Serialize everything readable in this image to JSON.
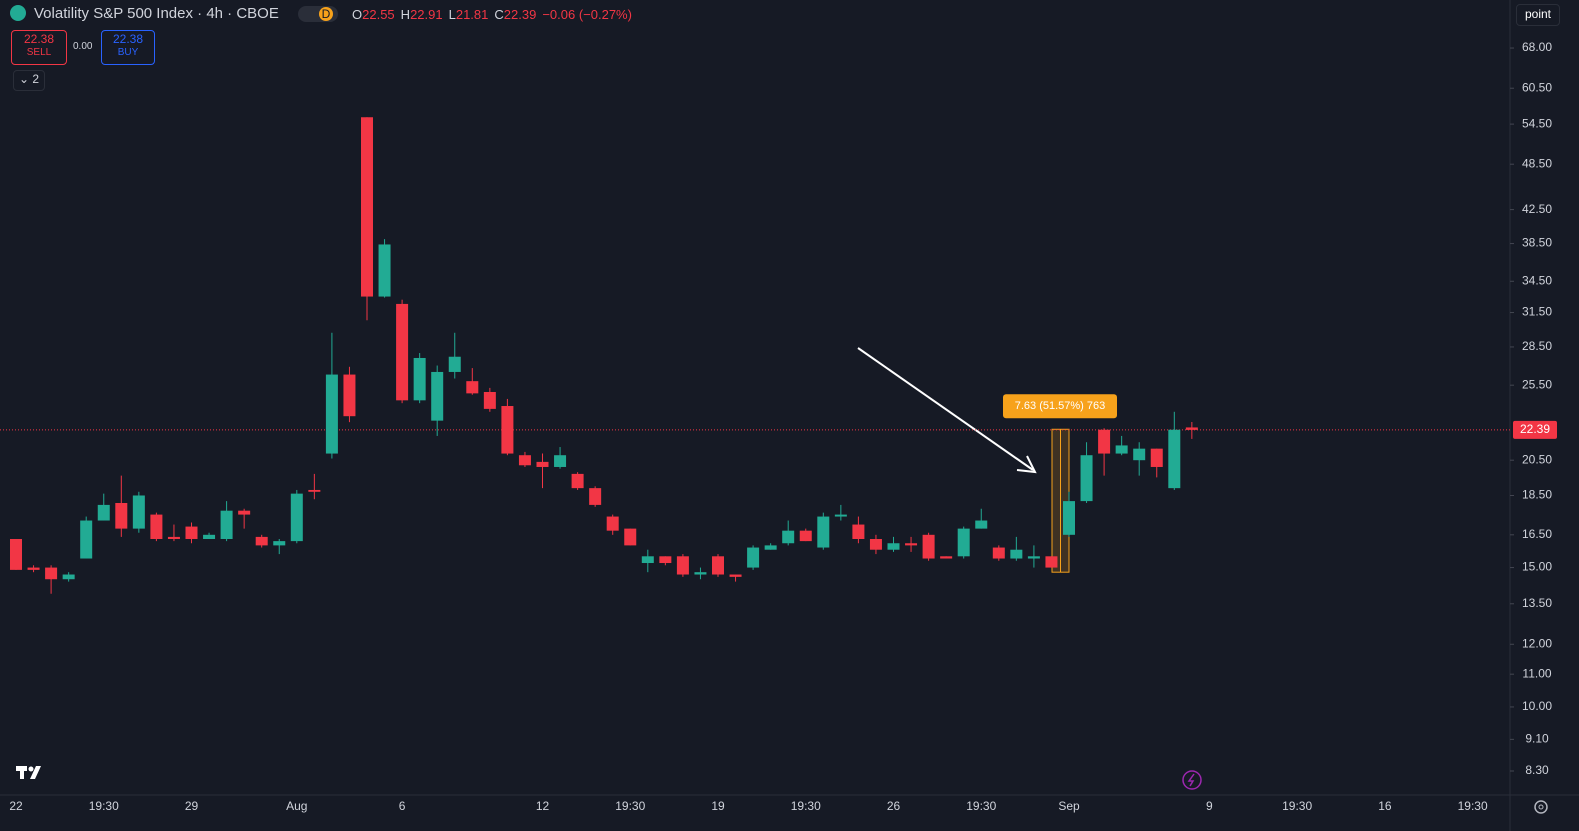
{
  "header": {
    "symbol": "Volatility S&P 500 Index · 4h · CBOE",
    "interval_badge": "D",
    "ohlc": [
      {
        "key": "O",
        "value": "22.55"
      },
      {
        "key": "H",
        "value": "22.91"
      },
      {
        "key": "L",
        "value": "21.81"
      },
      {
        "key": "C",
        "value": "22.39"
      }
    ],
    "change": "−0.06 (−0.27%)"
  },
  "trade": {
    "sell_price": "22.38",
    "sell_label": "SELL",
    "spread": "0.00",
    "buy_price": "22.38",
    "buy_label": "BUY"
  },
  "indicators_count": "2",
  "scale_mode": "point",
  "chart_data": {
    "type": "candlestick",
    "log_scale": true,
    "grid": false,
    "ylim": [
      7.74,
      78.2
    ],
    "yticks": [
      {
        "value": 8.3,
        "label": "8.30"
      },
      {
        "value": 9.1,
        "label": "9.10"
      },
      {
        "value": 10,
        "label": "10.00"
      },
      {
        "value": 11,
        "label": "11.00"
      },
      {
        "value": 12,
        "label": "12.00"
      },
      {
        "value": 13.5,
        "label": "13.50"
      },
      {
        "value": 15,
        "label": "15.00"
      },
      {
        "value": 16.5,
        "label": "16.50"
      },
      {
        "value": 18.5,
        "label": "18.50"
      },
      {
        "value": 20.5,
        "label": "20.50"
      },
      {
        "value": 25.5,
        "label": "25.50"
      },
      {
        "value": 28.5,
        "label": "28.50"
      },
      {
        "value": 31.5,
        "label": "31.50"
      },
      {
        "value": 34.5,
        "label": "34.50"
      },
      {
        "value": 38.5,
        "label": "38.50"
      },
      {
        "value": 42.5,
        "label": "42.50"
      },
      {
        "value": 48.5,
        "label": "48.50"
      },
      {
        "value": 54.5,
        "label": "54.50"
      },
      {
        "value": 60.5,
        "label": "60.50"
      },
      {
        "value": 68,
        "label": "68.00"
      }
    ],
    "categories": [
      "22",
      null,
      null,
      null,
      null,
      "19:30",
      null,
      null,
      null,
      null,
      "29",
      null,
      null,
      null,
      null,
      null,
      "Aug",
      null,
      null,
      null,
      null,
      null,
      "6",
      null,
      null,
      null,
      null,
      null,
      null,
      null,
      "12",
      null,
      null,
      null,
      null,
      "19:30",
      null,
      null,
      null,
      null,
      "19",
      null,
      null,
      null,
      null,
      "19:30",
      null,
      null,
      null,
      null,
      "26",
      null,
      null,
      null,
      null,
      "19:30",
      null,
      null,
      null,
      null,
      "Sep",
      null,
      null,
      null,
      null,
      null,
      null,
      null,
      "9",
      null,
      null,
      null,
      null,
      "19:30",
      null,
      null,
      null,
      null,
      "16",
      null,
      null,
      null,
      null,
      "19:30"
    ],
    "open": [
      16.3,
      15.0,
      15.0,
      14.5,
      15.4,
      17.2,
      18.1,
      16.8,
      17.5,
      16.4,
      16.9,
      16.3,
      16.3,
      17.7,
      16.4,
      16.0,
      16.2,
      18.8,
      20.9,
      26.3,
      55.6,
      33.0,
      32.3,
      24.4,
      23.0,
      26.5,
      25.8,
      25.0,
      24.0,
      20.8,
      20.4,
      20.1,
      19.7,
      18.9,
      17.4,
      16.8,
      15.2,
      15.5,
      15.5,
      14.7,
      15.5,
      14.7,
      15.0,
      15.8,
      16.1,
      16.7,
      15.9,
      17.4,
      17.0,
      16.3,
      15.8,
      16.1,
      16.5,
      15.5,
      15.5,
      16.8,
      15.9,
      15.4,
      15.4,
      15.5,
      16.5,
      18.2,
      22.4,
      20.9,
      20.5,
      21.2,
      18.9,
      22.55,
      null,
      null,
      null,
      null,
      null,
      null,
      null,
      null,
      null,
      null,
      null,
      null,
      null,
      null,
      null,
      null
    ],
    "high": [
      16.3,
      15.1,
      15.1,
      14.8,
      17.4,
      18.6,
      19.6,
      18.7,
      17.6,
      17.0,
      17.1,
      16.6,
      18.2,
      17.8,
      16.5,
      16.3,
      18.8,
      19.7,
      29.7,
      26.9,
      55.6,
      39.0,
      32.7,
      28.0,
      27.0,
      29.7,
      26.8,
      25.3,
      24.5,
      21.0,
      20.9,
      21.3,
      19.8,
      19.0,
      17.5,
      16.8,
      15.8,
      15.5,
      15.6,
      15.0,
      15.6,
      14.7,
      16.0,
      16.1,
      17.2,
      16.8,
      17.6,
      18.0,
      17.4,
      16.5,
      16.4,
      16.4,
      16.6,
      15.5,
      16.9,
      17.8,
      16.0,
      16.4,
      16.0,
      15.5,
      18.7,
      21.6,
      22.5,
      22.0,
      21.6,
      21.2,
      23.6,
      22.91,
      null,
      null,
      null,
      null,
      null,
      null,
      null,
      null,
      null,
      null,
      null,
      null,
      null,
      null,
      null,
      null
    ],
    "low": [
      14.9,
      14.8,
      13.9,
      14.4,
      15.4,
      17.2,
      16.4,
      16.6,
      16.2,
      16.2,
      16.1,
      16.3,
      16.2,
      16.8,
      15.9,
      15.6,
      16.1,
      18.3,
      20.6,
      22.9,
      30.8,
      32.9,
      24.2,
      24.2,
      22.0,
      26.0,
      24.8,
      23.6,
      20.8,
      20.1,
      18.9,
      20.0,
      18.8,
      17.9,
      16.5,
      16.0,
      14.8,
      15.1,
      14.6,
      14.5,
      14.6,
      14.4,
      14.9,
      15.8,
      16.0,
      16.2,
      15.8,
      17.2,
      16.1,
      15.6,
      15.7,
      15.7,
      15.3,
      15.4,
      15.4,
      16.8,
      15.3,
      15.3,
      15.0,
      15.0,
      16.4,
      18.1,
      19.6,
      20.8,
      19.6,
      19.5,
      18.8,
      21.81,
      null,
      null,
      null,
      null,
      null,
      null,
      null,
      null,
      null,
      null,
      null,
      null,
      null,
      null,
      null,
      null
    ],
    "close": [
      14.9,
      14.9,
      14.5,
      14.7,
      17.2,
      18.0,
      16.8,
      18.5,
      16.3,
      16.3,
      16.3,
      16.5,
      17.7,
      17.5,
      16.0,
      16.2,
      18.6,
      18.7,
      26.3,
      23.3,
      33.0,
      38.4,
      24.4,
      27.6,
      26.5,
      27.7,
      24.9,
      23.8,
      20.9,
      20.2,
      20.1,
      20.8,
      18.9,
      18.0,
      16.7,
      16.0,
      15.5,
      15.2,
      14.7,
      14.8,
      14.7,
      14.6,
      15.9,
      16.0,
      16.7,
      16.2,
      17.4,
      17.5,
      16.3,
      15.8,
      16.1,
      16.0,
      15.4,
      15.4,
      16.8,
      17.2,
      15.4,
      15.8,
      15.5,
      15.0,
      18.2,
      20.8,
      20.9,
      21.4,
      21.2,
      20.1,
      22.4,
      22.39,
      null,
      null,
      null,
      null,
      null,
      null,
      null,
      null,
      null,
      null,
      null,
      null,
      null,
      null,
      null,
      null
    ],
    "up_color": "#22ab94",
    "down_color": "#f23645",
    "last_price": 22.39,
    "last_price_color": "#f23645",
    "measure": {
      "from": 14.8,
      "to": 22.43,
      "label": "7.63 (51.57%) 763",
      "color": "#f7a21b"
    }
  }
}
